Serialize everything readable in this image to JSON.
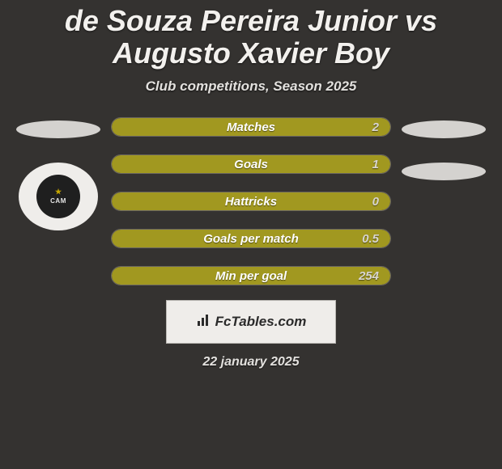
{
  "colors": {
    "background": "#343230",
    "title_color": "#f3f1ee",
    "subtitle_color": "#e3e1de",
    "ellipse_fill": "#d4d2cf",
    "crest_bg": "#efedea",
    "crest_inner": "#1f1f1f",
    "pill_bg": "#3a3835",
    "pill_border": "#6a6660",
    "pill_fill": "#a19820",
    "pill_text": "#ffffff",
    "pill_value": "#d8d5d0",
    "brand_bg": "#efedea",
    "brand_border": "#b8b6b2",
    "brand_text": "#2b2b2b",
    "date_color": "#e3e1de"
  },
  "typography": {
    "title_size": 36,
    "subtitle_size": 17,
    "pill_label_size": 15,
    "pill_value_size": 15,
    "brand_size": 17,
    "date_size": 16
  },
  "title": "de Souza Pereira Junior vs Augusto Xavier Boy",
  "subtitle": "Club competitions, Season 2025",
  "stats": [
    {
      "label": "Matches",
      "value": "2",
      "fill_pct": 100
    },
    {
      "label": "Goals",
      "value": "1",
      "fill_pct": 100
    },
    {
      "label": "Hattricks",
      "value": "0",
      "fill_pct": 100
    },
    {
      "label": "Goals per match",
      "value": "0.5",
      "fill_pct": 100
    },
    {
      "label": "Min per goal",
      "value": "254",
      "fill_pct": 100
    }
  ],
  "left_side": {
    "has_ellipse": true,
    "has_crest": true,
    "crest_text": "CAM"
  },
  "right_side": {
    "has_ellipse_1": true,
    "has_ellipse_2": true
  },
  "brand": "FcTables.com",
  "date": "22 january 2025"
}
